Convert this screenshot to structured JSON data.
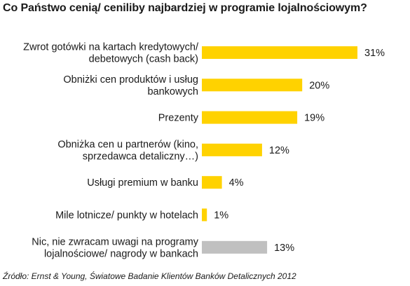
{
  "chart_data": {
    "type": "bar",
    "orientation": "horizontal",
    "title": "Co Państwo cenią/ ceniliby najbardziej w programie lojalnościowym?",
    "categories": [
      [
        "Zwrot gotówki na kartach kredytowych/",
        "debetowych (cash back)"
      ],
      [
        "Obniżki cen produktów i usług",
        "bankowych"
      ],
      [
        "Prezenty"
      ],
      [
        "Obniżka cen u partnerów (kino,",
        "sprzedawca detaliczny…)"
      ],
      [
        "Usługi premium w banku"
      ],
      [
        "Mile lotnicze/ punkty w hotelach"
      ],
      [
        "Nic, nie zwracam uwagi na programy",
        "lojalnościowe/ nagrody w bankach"
      ]
    ],
    "values": [
      31,
      20,
      19,
      12,
      4,
      1,
      13
    ],
    "value_labels": [
      "31%",
      "20%",
      "19%",
      "12%",
      "4%",
      "1%",
      "13%"
    ],
    "bar_colors": [
      "#FFD200",
      "#FFD200",
      "#FFD200",
      "#FFD200",
      "#FFD200",
      "#FFD200",
      "#C0C0C0"
    ],
    "xlim": [
      0,
      31
    ],
    "grid": false,
    "legend": "none",
    "source": "Źródło: Ernst & Young, Światowe Badanie Klientów Banków Detalicznych 2012"
  }
}
